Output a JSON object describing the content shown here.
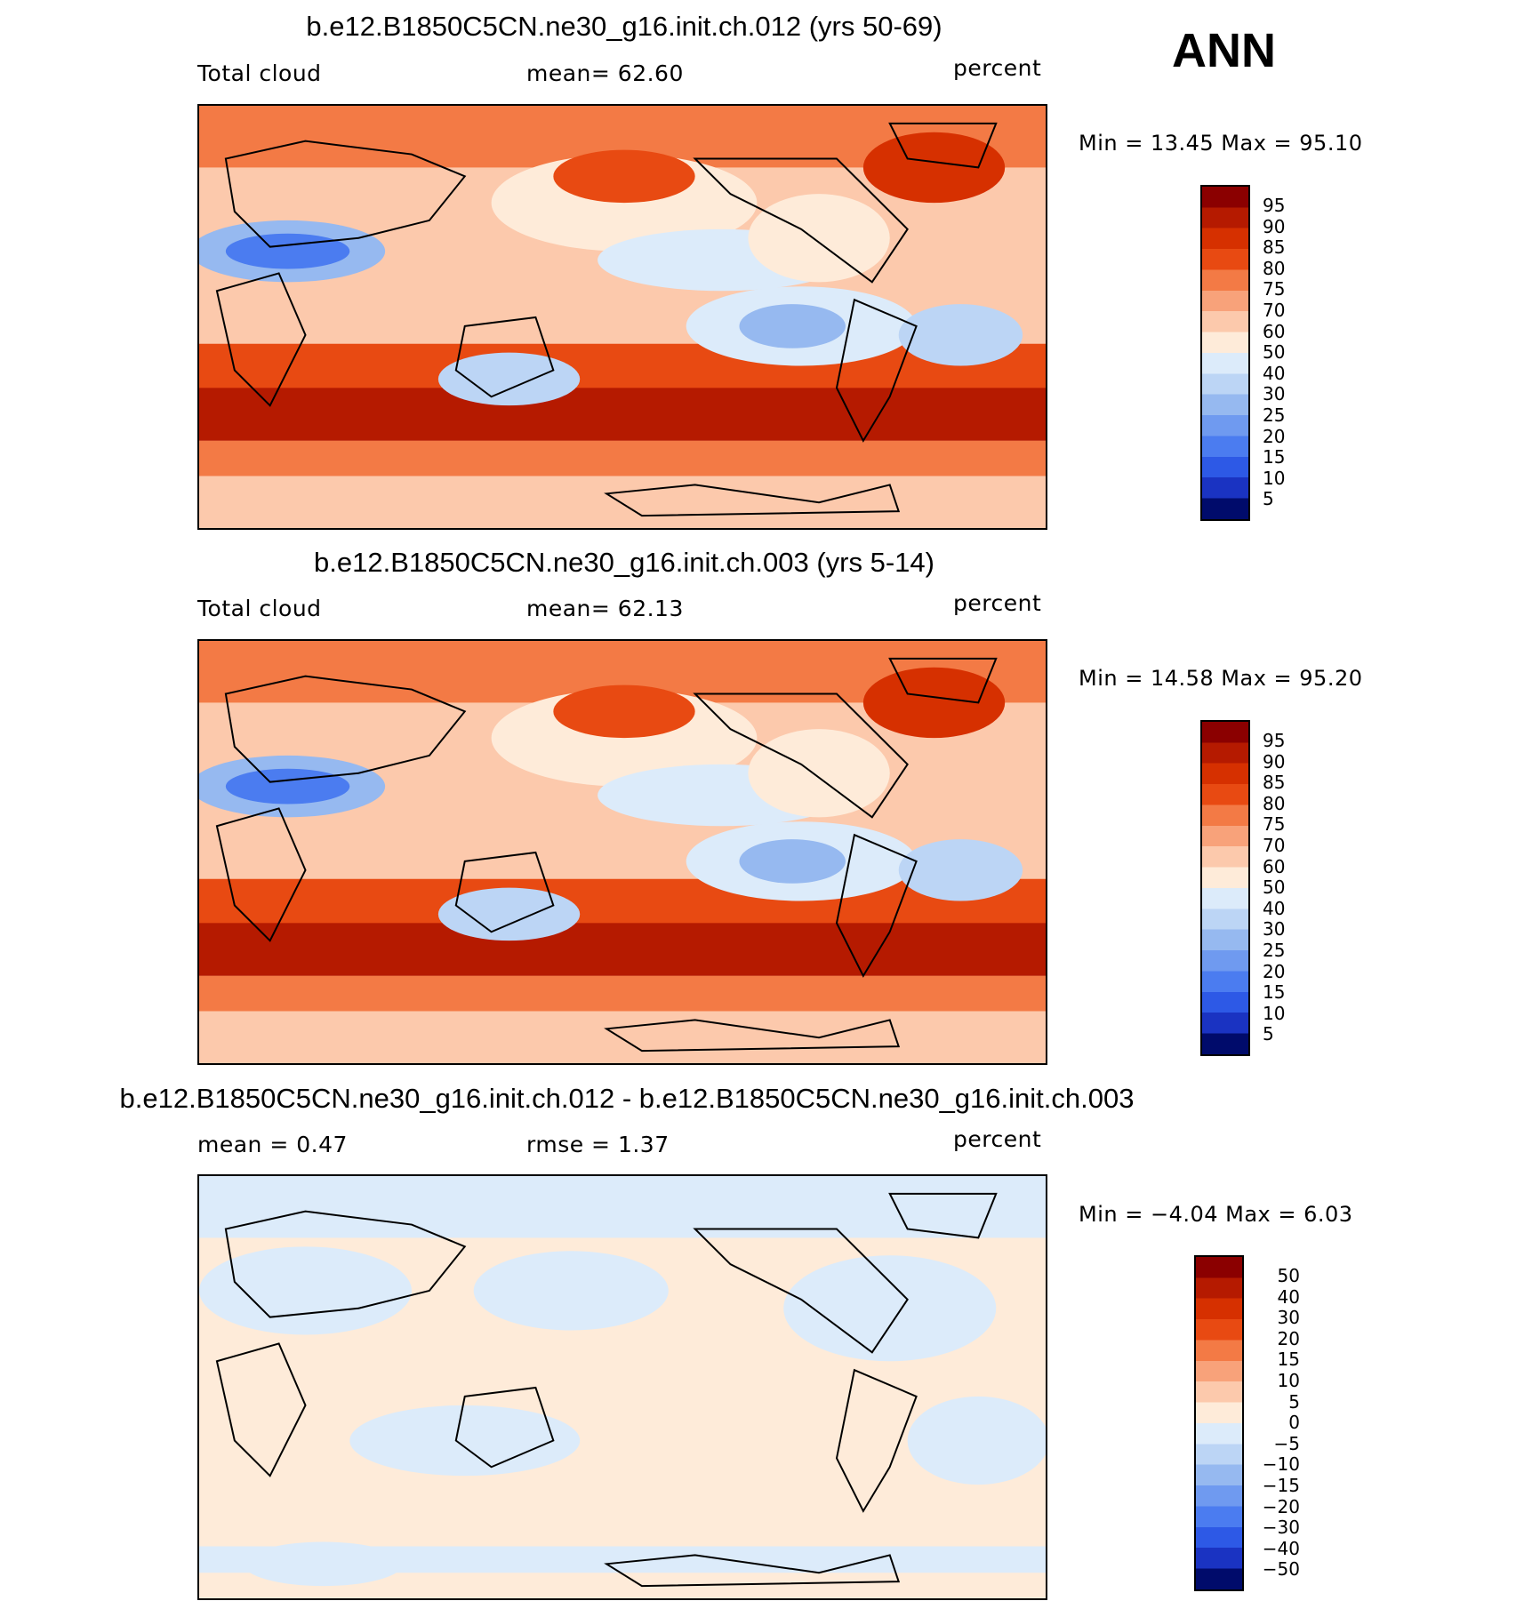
{
  "season": "ANN",
  "units": "percent",
  "panels": [
    {
      "title": "b.e12.B1850C5CN.ne30_g16.init.ch.012 (yrs 50-69)",
      "left_label": "Total cloud",
      "center_label": "mean=   62.60",
      "right_label": "percent",
      "minmax": "Min =    13.45  Max =    95.10",
      "colorbar": [
        "95",
        "90",
        "85",
        "80",
        "75",
        "70",
        "60",
        "50",
        "40",
        "30",
        "25",
        "20",
        "15",
        "10",
        "5"
      ]
    },
    {
      "title": "b.e12.B1850C5CN.ne30_g16.init.ch.003 (yrs 5-14)",
      "left_label": "Total cloud",
      "center_label": "mean=   62.13",
      "right_label": "percent",
      "minmax": "Min =    14.58  Max =    95.20",
      "colorbar": [
        "95",
        "90",
        "85",
        "80",
        "75",
        "70",
        "60",
        "50",
        "40",
        "30",
        "25",
        "20",
        "15",
        "10",
        "5"
      ]
    },
    {
      "title": "b.e12.B1850C5CN.ne30_g16.init.ch.012 - b.e12.B1850C5CN.ne30_g16.init.ch.003",
      "left_label": "mean =     0.47",
      "center_label": "rmse =     1.37",
      "right_label": "percent",
      "minmax": "Min =   −4.04  Max =     6.03",
      "colorbar": [
        "50",
        "40",
        "30",
        "20",
        "15",
        "10",
        "5",
        "0",
        "−5",
        "−10",
        "−15",
        "−20",
        "−30",
        "−40",
        "−50"
      ]
    }
  ],
  "colors": {
    "scale": [
      "#8b0000",
      "#b51a00",
      "#d63000",
      "#e84a12",
      "#f37a45",
      "#f8a27a",
      "#fcc9ac",
      "#feebd9",
      "#dcebfa",
      "#bcd5f5",
      "#96b9f0",
      "#6f9af0",
      "#4b7cf0",
      "#2d59e6",
      "#1a33c2",
      "#0a1896",
      "#000b6b"
    ]
  }
}
